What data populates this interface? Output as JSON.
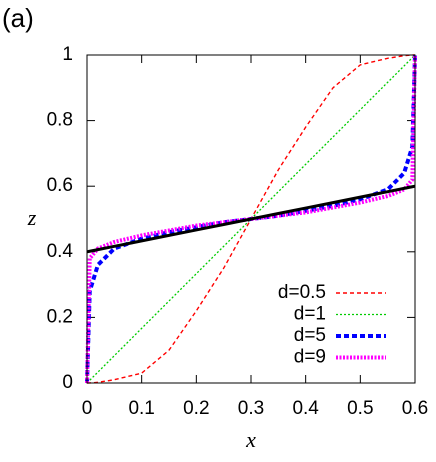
{
  "chart_data": {
    "type": "line",
    "panel_label": "(a)",
    "x_label": "x",
    "y_label": "z",
    "x": [
      0,
      0.005,
      0.02,
      0.05,
      0.1,
      0.15,
      0.2,
      0.25,
      0.3,
      0.35,
      0.4,
      0.45,
      0.5,
      0.55,
      0.58,
      0.595,
      0.6
    ],
    "series": [
      {
        "name": "d=0.5",
        "color": "#ff0000",
        "values": [
          0,
          0.0001,
          0.002,
          0.01,
          0.03,
          0.1,
          0.22,
          0.35,
          0.5,
          0.65,
          0.78,
          0.9,
          0.97,
          0.99,
          0.998,
          1,
          1
        ]
      },
      {
        "name": "d=1",
        "color": "#00cc00",
        "values": [
          0,
          0.0083,
          0.0333,
          0.0833,
          0.1667,
          0.25,
          0.3333,
          0.4167,
          0.5,
          0.5833,
          0.6667,
          0.75,
          0.8333,
          0.9167,
          0.9667,
          0.9917,
          1
        ]
      },
      {
        "name": "d=5",
        "color": "#0000ff",
        "values": [
          0,
          0.28,
          0.36,
          0.41,
          0.44,
          0.46,
          0.475,
          0.49,
          0.5,
          0.51,
          0.525,
          0.54,
          0.56,
          0.59,
          0.64,
          0.72,
          1
        ]
      },
      {
        "name": "d=9",
        "color": "#ff00ff",
        "values": [
          0,
          0.38,
          0.41,
          0.43,
          0.45,
          0.465,
          0.48,
          0.49,
          0.5,
          0.51,
          0.52,
          0.535,
          0.55,
          0.57,
          0.59,
          0.62,
          1
        ]
      },
      {
        "color": "#000000",
        "values": [
          0.4,
          0.4017,
          0.4067,
          0.4167,
          0.4333,
          0.45,
          0.4667,
          0.4833,
          0.5,
          0.5167,
          0.5333,
          0.55,
          0.5667,
          0.5833,
          0.5933,
          0.5983,
          0.6
        ]
      }
    ],
    "xlim": [
      0,
      0.6
    ],
    "xticks": [
      0,
      0.1,
      0.2,
      0.3,
      0.4,
      0.5,
      0.6
    ],
    "ylim": [
      0,
      1
    ],
    "yticks": [
      0,
      0.2,
      0.4,
      0.6,
      0.8,
      1
    ],
    "legend": "lower-right"
  }
}
